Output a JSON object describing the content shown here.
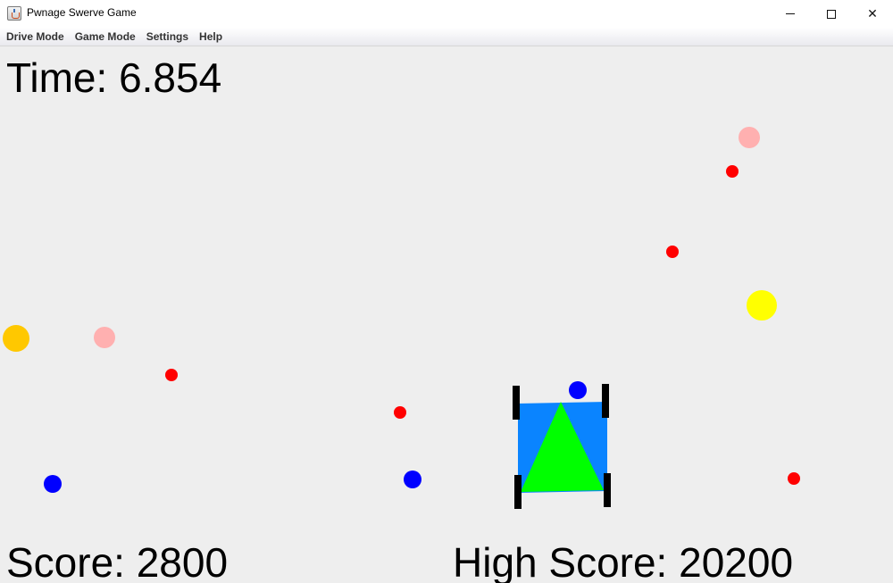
{
  "window": {
    "title": "Pwnage Swerve Game",
    "minimize_glyph": "",
    "maximize_glyph": "",
    "close_glyph": "✕"
  },
  "menu": {
    "items": [
      "Drive Mode",
      "Game Mode",
      "Settings",
      "Help"
    ]
  },
  "hud": {
    "time_text": "Time: 6.854",
    "score_text": "Score: 2800",
    "high_score_text": "High Score: 20200",
    "time": 6.854,
    "score": 2800,
    "high_score": 20200
  },
  "colors": {
    "background": "#eeeeee",
    "robot_body": "#0a84ff",
    "robot_arrow": "#00ff00",
    "wheel": "#000000",
    "red_dot": "#ff0000",
    "blue_dot": "#0000ff",
    "pink_dot": "#ffb0b0",
    "yellow_dot": "#ffff00",
    "orange_dot": "#ffc800"
  },
  "game_objects": [
    {
      "type": "pink-ball"
    },
    {
      "type": "red-ball"
    },
    {
      "type": "red-ball"
    },
    {
      "type": "yellow-ball"
    },
    {
      "type": "orange-ball"
    },
    {
      "type": "pink-ball"
    },
    {
      "type": "red-ball"
    },
    {
      "type": "red-ball"
    },
    {
      "type": "blue-ball"
    },
    {
      "type": "blue-ball"
    },
    {
      "type": "blue-ball"
    },
    {
      "type": "red-ball"
    }
  ]
}
